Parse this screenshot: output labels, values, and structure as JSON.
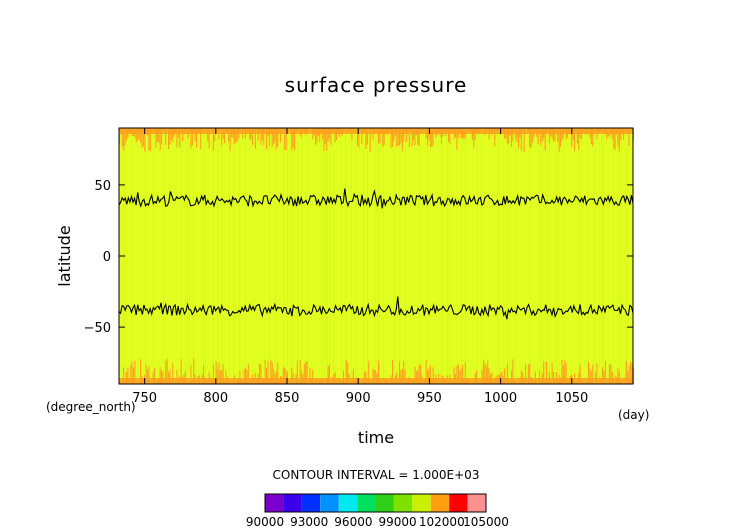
{
  "chart_data": {
    "type": "heatmap",
    "title": "surface pressure",
    "xlabel": "time",
    "ylabel": "latitude",
    "x_unit": "(day)",
    "y_unit": "(degree_north)",
    "xlim": [
      732,
      1093
    ],
    "ylim": [
      -90,
      90
    ],
    "x_ticks": [
      750,
      800,
      850,
      900,
      950,
      1000,
      1050
    ],
    "y_ticks": [
      50,
      0,
      -50
    ],
    "contour_interval_text": "CONTOUR INTERVAL = 1.000E+03",
    "colorbar": {
      "levels": [
        90000,
        91000,
        92000,
        93000,
        94000,
        95000,
        96000,
        97000,
        98000,
        99000,
        100000,
        101000,
        102000,
        103000,
        104000,
        105000
      ],
      "tick_labels": [
        "90000",
        "93000",
        "96000",
        "99000",
        "102000",
        "105000"
      ],
      "colors": [
        "#7a00cc",
        "#3a00ee",
        "#0030ff",
        "#0090ff",
        "#00e8f0",
        "#00e060",
        "#30d018",
        "#80e000",
        "#c8f000",
        "#ffa010",
        "#ff0000",
        "#ff9090"
      ]
    },
    "field_colors": {
      "main": "#e0ff20",
      "high": "#ffa020"
    },
    "contour_lines": [
      {
        "level": 99000,
        "mean_latitude": 39,
        "start_latitude": 36,
        "end_latitude": 37
      },
      {
        "level": 99000,
        "mean_latitude": -38,
        "start_latitude": -39,
        "end_latitude": -40
      }
    ],
    "high_pressure_bands": [
      {
        "region": "north",
        "from_latitude": 73,
        "to_latitude": 90
      },
      {
        "region": "south",
        "from_latitude": -90,
        "to_latitude": -72
      }
    ]
  }
}
